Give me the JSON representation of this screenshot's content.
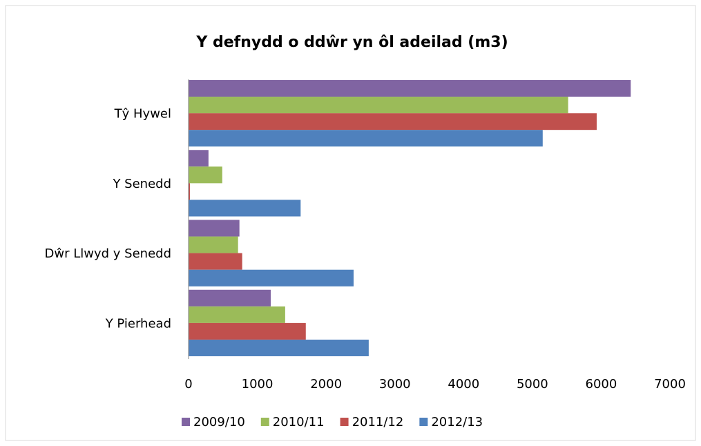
{
  "chart_data": {
    "type": "hbar",
    "title": "Y defnydd o ddŵr yn ôl adeilad (m3)",
    "categories": [
      "Tŷ Hywel",
      "Y Senedd",
      "Dŵr Llwyd y Senedd",
      "Y Pierhead"
    ],
    "series": [
      {
        "name": "2009/10",
        "color": "#8064a2",
        "values": [
          6430,
          290,
          740,
          1195
        ]
      },
      {
        "name": "2010/11",
        "color": "#9bbb59",
        "values": [
          5520,
          490,
          720,
          1405
        ]
      },
      {
        "name": "2011/12",
        "color": "#c0504d",
        "values": [
          5935,
          20,
          780,
          1705
        ]
      },
      {
        "name": "2012/13",
        "color": "#4f81bd",
        "values": [
          5150,
          1630,
          2400,
          2620
        ]
      }
    ],
    "xlim": [
      0,
      7000
    ],
    "xticks": [
      0,
      1000,
      2000,
      3000,
      4000,
      5000,
      6000,
      7000
    ],
    "grid": false,
    "legend": "bottom"
  }
}
